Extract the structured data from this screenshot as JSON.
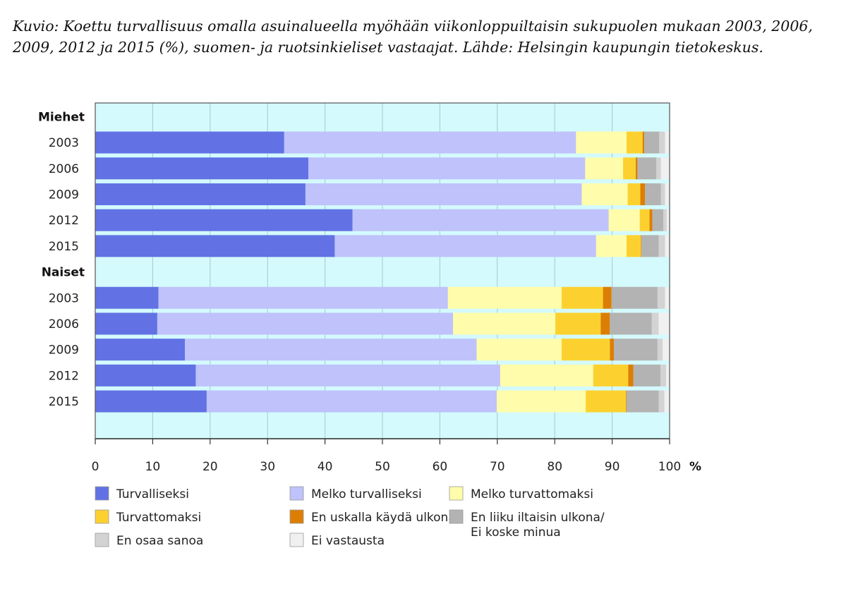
{
  "caption": "Kuvio: Koettu turvallisuus omalla asuinalueella myöhään viikonloppuiltaisin sukupuolen mukaan 2003, 2006, 2009, 2012 ja 2015 (%), suomen- ja ruotsinkieliset vastaajat. Lähde: Helsingin kaupungin tietokeskus.",
  "chart_data": {
    "type": "bar",
    "orientation": "horizontal",
    "stacked": true,
    "x_unit": "%",
    "xlim": [
      0,
      100
    ],
    "x_ticks": [
      0,
      10,
      20,
      30,
      40,
      50,
      60,
      70,
      80,
      90,
      100
    ],
    "grid": true,
    "legend_position": "bottom",
    "categories": [
      "Turvalliseksi",
      "Melko turvalliseksi",
      "Melko turvattomaksi",
      "Turvattomaksi",
      "En uskalla käydä ulkona",
      "En liiku iltaisin ulkona/ Ei koske minua",
      "En osaa sanoa",
      "Ei vastausta"
    ],
    "colors": [
      "#6272e4",
      "#bfc2fb",
      "#fffcab",
      "#fcd12f",
      "#dd7e04",
      "#b3b3b3",
      "#d3d3d3",
      "#f0f0f0"
    ],
    "groups": [
      {
        "label": "Miehet",
        "rows": [
          {
            "label": "2003",
            "values": [
              32.9,
              50.8,
              8.8,
              2.8,
              0.3,
              2.6,
              1.0,
              0.8
            ]
          },
          {
            "label": "2006",
            "values": [
              37.1,
              48.2,
              6.6,
              2.2,
              0.3,
              3.3,
              0.8,
              1.5
            ]
          },
          {
            "label": "2009",
            "values": [
              36.6,
              48.1,
              8.0,
              2.2,
              0.8,
              2.8,
              0.7,
              0.8
            ]
          },
          {
            "label": "2012",
            "values": [
              44.8,
              44.6,
              5.4,
              1.7,
              0.5,
              1.9,
              0.6,
              0.5
            ]
          },
          {
            "label": "2015",
            "values": [
              41.7,
              45.5,
              5.3,
              2.5,
              0.1,
              3.0,
              1.1,
              0.8
            ]
          }
        ]
      },
      {
        "label": "Naiset",
        "rows": [
          {
            "label": "2003",
            "values": [
              11.0,
              50.4,
              19.8,
              7.2,
              1.5,
              8.0,
              1.3,
              0.8
            ]
          },
          {
            "label": "2006",
            "values": [
              10.8,
              51.5,
              17.8,
              7.9,
              1.6,
              7.3,
              1.2,
              1.9
            ]
          },
          {
            "label": "2009",
            "values": [
              15.6,
              50.8,
              14.8,
              8.4,
              0.7,
              7.6,
              0.9,
              1.2
            ]
          },
          {
            "label": "2012",
            "values": [
              17.5,
              53.0,
              16.2,
              6.1,
              0.9,
              4.7,
              1.0,
              0.6
            ]
          },
          {
            "label": "2015",
            "values": [
              19.4,
              50.5,
              15.5,
              7.0,
              0.1,
              5.6,
              1.0,
              0.9
            ]
          }
        ]
      }
    ]
  }
}
